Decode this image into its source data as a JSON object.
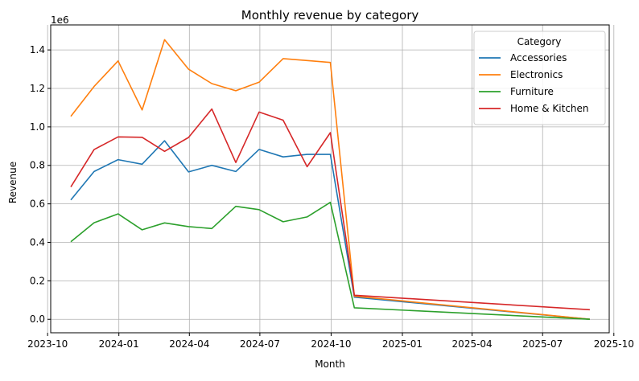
{
  "chart_data": {
    "type": "line",
    "title": "Monthly revenue by category",
    "xlabel": "Month",
    "ylabel": "Revenue",
    "y_offset_label": "1e6",
    "ylim": [
      -0.07,
      1.53
    ],
    "xlim": [
      "2023-10-05",
      "2025-09-25"
    ],
    "grid": true,
    "legend": {
      "title": "Category",
      "placement": "top-right"
    },
    "x_ticks": [
      {
        "date": "2023-10-01",
        "label": "2023-10"
      },
      {
        "date": "2024-01-01",
        "label": "2024-01"
      },
      {
        "date": "2024-04-01",
        "label": "2024-04"
      },
      {
        "date": "2024-07-01",
        "label": "2024-07"
      },
      {
        "date": "2024-10-01",
        "label": "2024-10"
      },
      {
        "date": "2025-01-01",
        "label": "2025-01"
      },
      {
        "date": "2025-04-01",
        "label": "2025-04"
      },
      {
        "date": "2025-07-01",
        "label": "2025-07"
      },
      {
        "date": "2025-10-01",
        "label": "2025-10"
      }
    ],
    "y_ticks": [
      {
        "value": 0.0,
        "label": "0.0"
      },
      {
        "value": 0.2,
        "label": "0.2"
      },
      {
        "value": 0.4,
        "label": "0.4"
      },
      {
        "value": 0.6,
        "label": "0.6"
      },
      {
        "value": 0.8,
        "label": "0.8"
      },
      {
        "value": 1.0,
        "label": "1.0"
      },
      {
        "value": 1.2,
        "label": "1.2"
      },
      {
        "value": 1.4,
        "label": "1.4"
      }
    ],
    "series": [
      {
        "name": "Accessories",
        "color": "#1f77b4",
        "points": [
          [
            "2023-10-31",
            0.62
          ],
          [
            "2023-11-30",
            0.768
          ],
          [
            "2023-12-31",
            0.83
          ],
          [
            "2024-01-31",
            0.806
          ],
          [
            "2024-02-29",
            0.928
          ],
          [
            "2024-03-31",
            0.766
          ],
          [
            "2024-04-30",
            0.8
          ],
          [
            "2024-05-31",
            0.768
          ],
          [
            "2024-06-30",
            0.883
          ],
          [
            "2024-07-31",
            0.844
          ],
          [
            "2024-08-31",
            0.857
          ],
          [
            "2024-09-30",
            0.857
          ],
          [
            "2024-10-31",
            0.115
          ],
          [
            "2025-08-31",
            0.0
          ]
        ]
      },
      {
        "name": "Electronics",
        "color": "#ff7f0e",
        "points": [
          [
            "2023-10-31",
            1.055
          ],
          [
            "2023-11-30",
            1.21
          ],
          [
            "2023-12-31",
            1.343
          ],
          [
            "2024-01-31",
            1.088
          ],
          [
            "2024-02-29",
            1.453
          ],
          [
            "2024-03-31",
            1.3
          ],
          [
            "2024-04-30",
            1.225
          ],
          [
            "2024-05-31",
            1.188
          ],
          [
            "2024-06-30",
            1.232
          ],
          [
            "2024-07-31",
            1.355
          ],
          [
            "2024-08-31",
            1.345
          ],
          [
            "2024-09-30",
            1.335
          ],
          [
            "2024-10-31",
            0.12
          ],
          [
            "2025-08-31",
            0.0
          ]
        ]
      },
      {
        "name": "Furniture",
        "color": "#2ca02c",
        "points": [
          [
            "2023-10-31",
            0.403
          ],
          [
            "2023-11-30",
            0.502
          ],
          [
            "2023-12-31",
            0.548
          ],
          [
            "2024-01-31",
            0.465
          ],
          [
            "2024-02-29",
            0.501
          ],
          [
            "2024-03-31",
            0.482
          ],
          [
            "2024-04-30",
            0.472
          ],
          [
            "2024-05-31",
            0.587
          ],
          [
            "2024-06-30",
            0.57
          ],
          [
            "2024-07-31",
            0.507
          ],
          [
            "2024-08-31",
            0.532
          ],
          [
            "2024-09-30",
            0.608
          ],
          [
            "2024-10-31",
            0.06
          ],
          [
            "2025-08-31",
            0.0
          ]
        ]
      },
      {
        "name": "Home & Kitchen",
        "color": "#d62728",
        "points": [
          [
            "2023-10-31",
            0.688
          ],
          [
            "2023-11-30",
            0.882
          ],
          [
            "2023-12-31",
            0.948
          ],
          [
            "2024-01-31",
            0.946
          ],
          [
            "2024-02-29",
            0.873
          ],
          [
            "2024-03-31",
            0.945
          ],
          [
            "2024-04-30",
            1.093
          ],
          [
            "2024-05-31",
            0.815
          ],
          [
            "2024-06-30",
            1.077
          ],
          [
            "2024-07-31",
            1.035
          ],
          [
            "2024-08-31",
            0.793
          ],
          [
            "2024-09-30",
            0.97
          ],
          [
            "2024-10-31",
            0.125
          ],
          [
            "2025-08-31",
            0.05
          ]
        ]
      }
    ]
  }
}
